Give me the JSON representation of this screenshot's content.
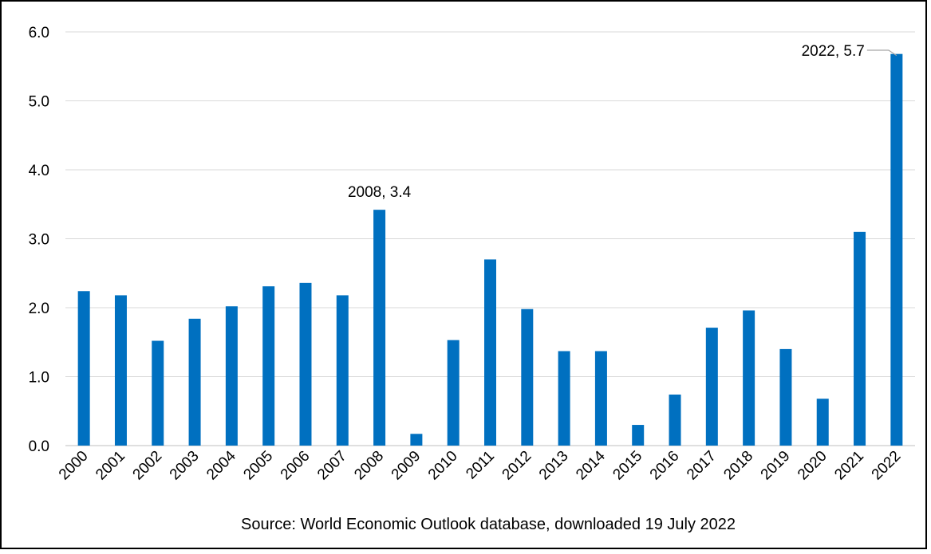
{
  "chart_data": {
    "type": "bar",
    "categories": [
      "2000",
      "2001",
      "2002",
      "2003",
      "2004",
      "2005",
      "2006",
      "2007",
      "2008",
      "2009",
      "2010",
      "2011",
      "2012",
      "2013",
      "2014",
      "2015",
      "2016",
      "2017",
      "2018",
      "2019",
      "2020",
      "2021",
      "2022"
    ],
    "values": [
      2.24,
      2.18,
      1.52,
      1.84,
      2.02,
      2.31,
      2.36,
      2.18,
      3.42,
      0.17,
      1.53,
      2.7,
      1.98,
      1.37,
      1.37,
      0.3,
      0.74,
      1.71,
      1.96,
      1.4,
      0.68,
      3.1,
      5.68
    ],
    "ylim": [
      0,
      6
    ],
    "yticks": [
      "0.0",
      "1.0",
      "2.0",
      "3.0",
      "4.0",
      "5.0",
      "6.0"
    ],
    "grid": true,
    "bar_color": "#0070C0",
    "annotations": [
      {
        "category": "2008",
        "text": "2008, 3.4"
      },
      {
        "category": "2022",
        "text": "2022, 5.7"
      }
    ],
    "caption": "Source: World Economic Outlook database, downloaded 19 July 2022",
    "title": "",
    "xlabel": "",
    "ylabel": ""
  }
}
